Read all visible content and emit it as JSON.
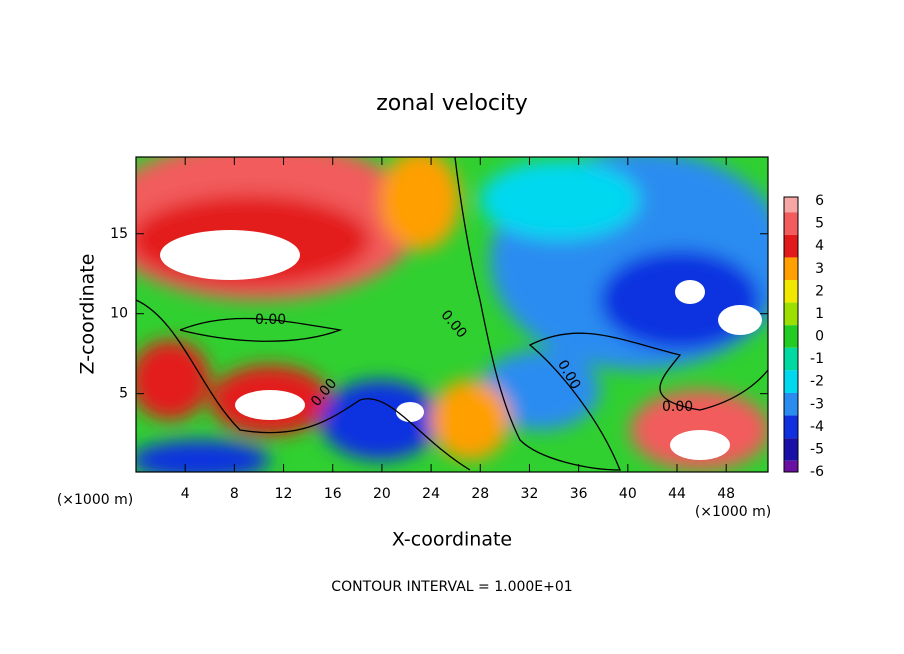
{
  "chart_data": {
    "type": "contour",
    "title": "zonal velocity",
    "x_label": "X-coordinate",
    "y_label": "Z-coordinate",
    "x_unit_label": "(×1000 m)",
    "y_unit_label": "(×1000 m)",
    "footer": "CONTOUR INTERVAL = 1.000E+01",
    "xlim": [
      0,
      51.4
    ],
    "ylim": [
      0.1,
      19.8
    ],
    "xticks": [
      4,
      8,
      12,
      16,
      20,
      24,
      28,
      32,
      36,
      40,
      44,
      48
    ],
    "yticks": [
      5,
      10,
      15
    ],
    "contour_labels": [
      "0.00",
      "0.00",
      "0.00",
      "0.00",
      "0.00"
    ],
    "colorbar": {
      "levels": [
        6,
        5,
        4,
        3,
        2,
        1,
        0,
        -1,
        -2,
        -3,
        -4,
        -5,
        -6
      ],
      "colors": [
        "#f7a6a6",
        "#f25c5c",
        "#e31a1c",
        "#ff9f00",
        "#f0e800",
        "#9be000",
        "#22cc22",
        "#00d9a0",
        "#00d8f0",
        "#2b8cf0",
        "#1030e0",
        "#1a10a8",
        "#6a10a0"
      ]
    }
  }
}
